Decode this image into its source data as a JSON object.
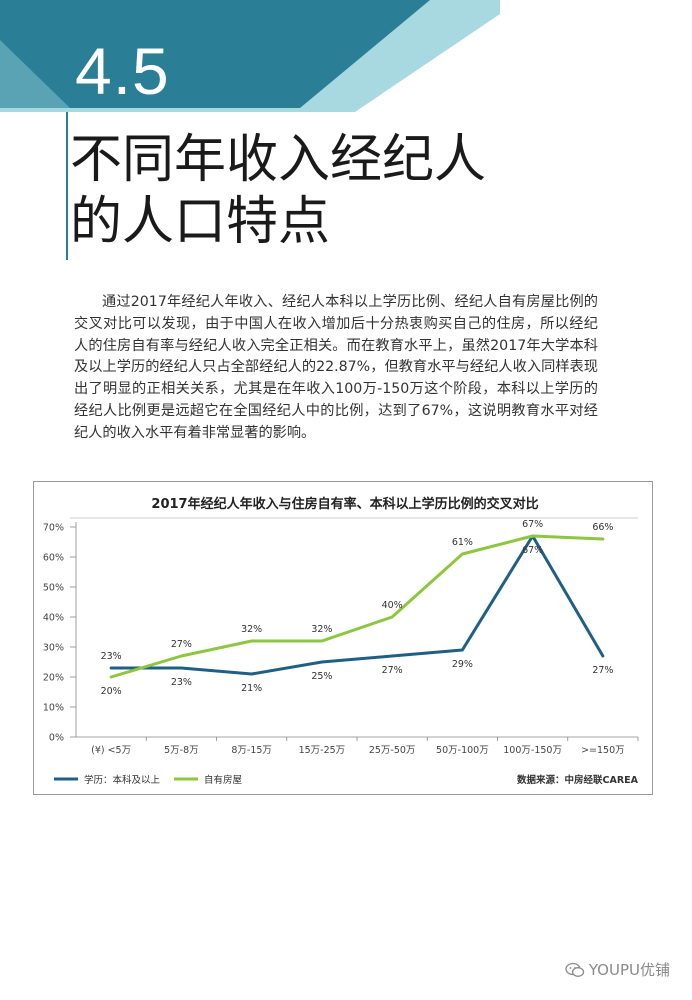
{
  "section": {
    "number": "4.5"
  },
  "title": {
    "line1": "不同年收入经纪人",
    "line2": "的人口特点"
  },
  "body": {
    "paragraph": "通过2017年经纪人年收入、经纪人本科以上学历比例、经纪人自有房屋比例的交叉对比可以发现，由于中国人在收入增加后十分热衷购买自己的住房，所以经纪人的住房自有率与经纪人收入完全正相关。而在教育水平上，虽然2017年大学本科及以上学历的经纪人只占全部经纪人的22.87%，但教育水平与经纪人收入同样表现出了明显的正相关关系，尤其是在年收入100万-150万这个阶段，本科以上学历的经纪人比例更是远超它在全国经纪人中的比例，达到了67%，这说明教育水平对经纪人的收入水平有着非常显著的影响。"
  },
  "colors": {
    "teal_dark": "#2a7f96",
    "teal_light": "#a8d8e0",
    "education_line": "#1f5f86",
    "housing_line": "#8dc63f"
  },
  "chart_data": {
    "type": "line",
    "title": "2017年经纪人年收入与住房自有率、本科以上学历比例的交叉对比",
    "categories": [
      "(¥) <5万",
      "5万-8万",
      "8万-15万",
      "15万-25万",
      "25万-50万",
      "50万-100万",
      "100万-150万",
      ">=150万"
    ],
    "y_ticks": [
      "70%",
      "60%",
      "50%",
      "40%",
      "30%",
      "20%",
      "10%",
      "0%"
    ],
    "ylim": [
      0,
      70
    ],
    "series": [
      {
        "name": "学历：本科及以上",
        "color": "#1f5f86",
        "values": [
          23,
          23,
          21,
          25,
          27,
          29,
          67,
          27
        ],
        "labels": [
          "23%",
          "23%",
          "21%",
          "25%",
          "27%",
          "29%",
          "67%",
          "27%"
        ]
      },
      {
        "name": "自有房屋",
        "color": "#8dc63f",
        "values": [
          20,
          27,
          32,
          32,
          40,
          61,
          67,
          66
        ],
        "labels": [
          "20%",
          "27%",
          "32%",
          "32%",
          "40%",
          "61%",
          "67%",
          "66%"
        ]
      }
    ],
    "source": "数据来源：中房经联CAREA",
    "grid": false,
    "legend_position": "bottom-left"
  },
  "watermark": {
    "text": "YOUPU优铺",
    "icon": "wechat-icon"
  }
}
